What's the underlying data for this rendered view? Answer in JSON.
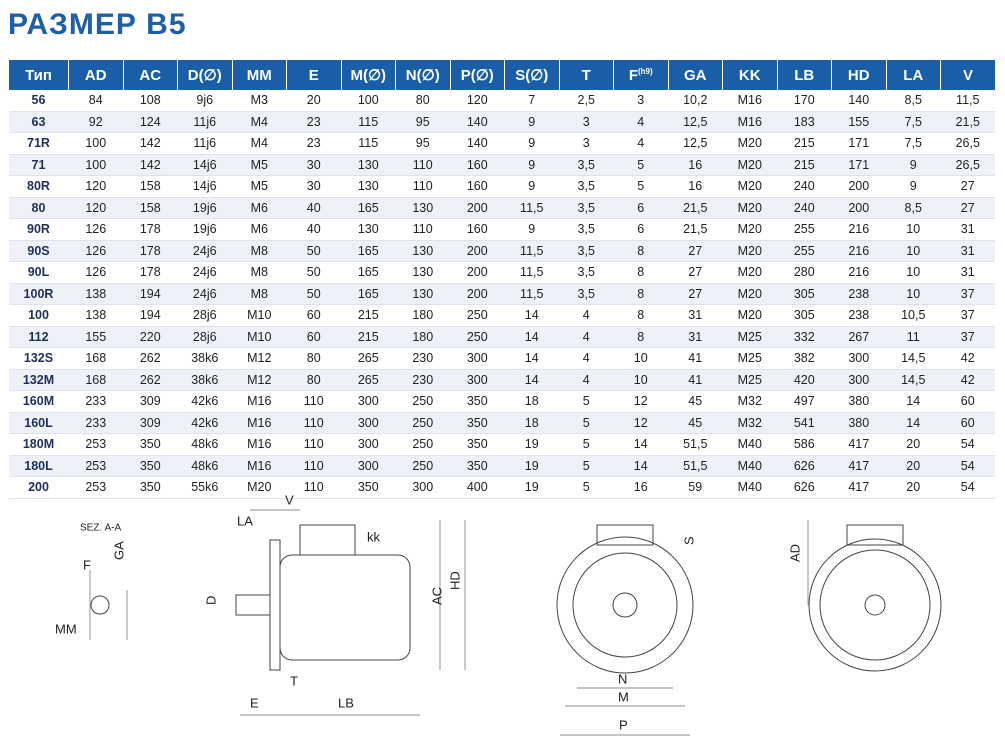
{
  "header": {
    "title": "РАЗМЕР B5"
  },
  "table": {
    "columns": [
      "Тип",
      "AD",
      "AC",
      "D(∅)",
      "MM",
      "E",
      "M(∅)",
      "N(∅)",
      "P(∅)",
      "S(∅)",
      "T",
      {
        "text": "F",
        "sup": "(h9)"
      },
      "GA",
      "KK",
      "LB",
      "HD",
      "LA",
      "V"
    ],
    "rows": [
      [
        "56",
        "84",
        "108",
        "9j6",
        "M3",
        "20",
        "100",
        "80",
        "120",
        "7",
        "2,5",
        "3",
        "10,2",
        "M16",
        "170",
        "140",
        "8,5",
        "11,5"
      ],
      [
        "63",
        "92",
        "124",
        "11j6",
        "M4",
        "23",
        "115",
        "95",
        "140",
        "9",
        "3",
        "4",
        "12,5",
        "M16",
        "183",
        "155",
        "7,5",
        "21,5"
      ],
      [
        "71R",
        "100",
        "142",
        "11j6",
        "M4",
        "23",
        "115",
        "95",
        "140",
        "9",
        "3",
        "4",
        "12,5",
        "M20",
        "215",
        "171",
        "7,5",
        "26,5"
      ],
      [
        "71",
        "100",
        "142",
        "14j6",
        "M5",
        "30",
        "130",
        "110",
        "160",
        "9",
        "3,5",
        "5",
        "16",
        "M20",
        "215",
        "171",
        "9",
        "26,5"
      ],
      [
        "80R",
        "120",
        "158",
        "14j6",
        "M5",
        "30",
        "130",
        "110",
        "160",
        "9",
        "3,5",
        "5",
        "16",
        "M20",
        "240",
        "200",
        "9",
        "27"
      ],
      [
        "80",
        "120",
        "158",
        "19j6",
        "M6",
        "40",
        "165",
        "130",
        "200",
        "11,5",
        "3,5",
        "6",
        "21,5",
        "M20",
        "240",
        "200",
        "8,5",
        "27"
      ],
      [
        "90R",
        "126",
        "178",
        "19j6",
        "M6",
        "40",
        "130",
        "110",
        "160",
        "9",
        "3,5",
        "6",
        "21,5",
        "M20",
        "255",
        "216",
        "10",
        "31"
      ],
      [
        "90S",
        "126",
        "178",
        "24j6",
        "M8",
        "50",
        "165",
        "130",
        "200",
        "11,5",
        "3,5",
        "8",
        "27",
        "M20",
        "255",
        "216",
        "10",
        "31"
      ],
      [
        "90L",
        "126",
        "178",
        "24j6",
        "M8",
        "50",
        "165",
        "130",
        "200",
        "11,5",
        "3,5",
        "8",
        "27",
        "M20",
        "280",
        "216",
        "10",
        "31"
      ],
      [
        "100R",
        "138",
        "194",
        "24j6",
        "M8",
        "50",
        "165",
        "130",
        "200",
        "11,5",
        "3,5",
        "8",
        "27",
        "M20",
        "305",
        "238",
        "10",
        "37"
      ],
      [
        "100",
        "138",
        "194",
        "28j6",
        "M10",
        "60",
        "215",
        "180",
        "250",
        "14",
        "4",
        "8",
        "31",
        "M20",
        "305",
        "238",
        "10,5",
        "37"
      ],
      [
        "112",
        "155",
        "220",
        "28j6",
        "M10",
        "60",
        "215",
        "180",
        "250",
        "14",
        "4",
        "8",
        "31",
        "M25",
        "332",
        "267",
        "11",
        "37"
      ],
      [
        "132S",
        "168",
        "262",
        "38k6",
        "M12",
        "80",
        "265",
        "230",
        "300",
        "14",
        "4",
        "10",
        "41",
        "M25",
        "382",
        "300",
        "14,5",
        "42"
      ],
      [
        "132M",
        "168",
        "262",
        "38k6",
        "M12",
        "80",
        "265",
        "230",
        "300",
        "14",
        "4",
        "10",
        "41",
        "M25",
        "420",
        "300",
        "14,5",
        "42"
      ],
      [
        "160M",
        "233",
        "309",
        "42k6",
        "M16",
        "110",
        "300",
        "250",
        "350",
        "18",
        "5",
        "12",
        "45",
        "M32",
        "497",
        "380",
        "14",
        "60"
      ],
      [
        "160L",
        "233",
        "309",
        "42k6",
        "M16",
        "110",
        "300",
        "250",
        "350",
        "18",
        "5",
        "12",
        "45",
        "M32",
        "541",
        "380",
        "14",
        "60"
      ],
      [
        "180M",
        "253",
        "350",
        "48k6",
        "M16",
        "110",
        "300",
        "250",
        "350",
        "19",
        "5",
        "14",
        "51,5",
        "M40",
        "586",
        "417",
        "20",
        "54"
      ],
      [
        "180L",
        "253",
        "350",
        "48k6",
        "M16",
        "110",
        "300",
        "250",
        "350",
        "19",
        "5",
        "14",
        "51,5",
        "M40",
        "626",
        "417",
        "20",
        "54"
      ],
      [
        "200",
        "253",
        "350",
        "55k6",
        "M20",
        "110",
        "350",
        "300",
        "400",
        "19",
        "5",
        "16",
        "59",
        "M40",
        "626",
        "417",
        "20",
        "54"
      ]
    ]
  },
  "drawing": {
    "section": "SEZ. A-A",
    "F": "F",
    "GA": "GA",
    "MM": "MM",
    "LA": "LA",
    "V": "V",
    "kk": "kk",
    "D": "D",
    "AC": "AC",
    "HD": "HD",
    "T": "T",
    "E": "E",
    "LB": "LB",
    "S": "S",
    "N": "N",
    "M": "M",
    "P": "P",
    "AD": "AD"
  }
}
